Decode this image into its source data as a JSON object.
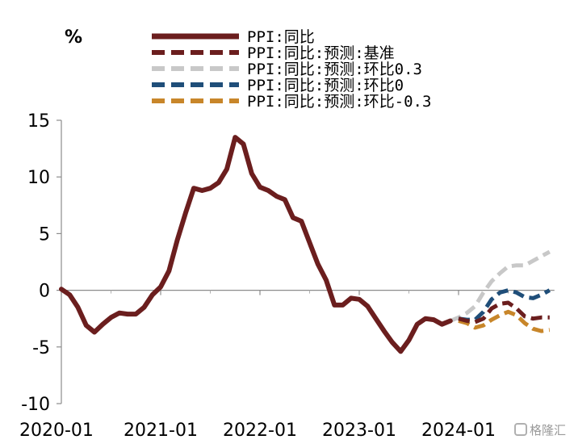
{
  "chart_data": {
    "type": "line",
    "unit_label": "%",
    "ylim": [
      -10,
      15
    ],
    "yticks": [
      "15",
      "10",
      "5",
      "0",
      "-5",
      "-10"
    ],
    "ytick_values": [
      15,
      10,
      5,
      0,
      -5,
      -10
    ],
    "xlim": [
      "2020-01",
      "2024-12"
    ],
    "xticks": [
      "2020-01",
      "2021-01",
      "2022-01",
      "2023-01",
      "2024-01"
    ],
    "xtick_indices": [
      0,
      12,
      24,
      36,
      48
    ],
    "grid": false,
    "legend_position": "top",
    "series": [
      {
        "name": "PPI:同比",
        "color": "#6b1e1e",
        "style": "solid",
        "start": "2020-01",
        "values": [
          0.1,
          -0.4,
          -1.5,
          -3.1,
          -3.7,
          -3.0,
          -2.4,
          -2.0,
          -2.1,
          -2.1,
          -1.5,
          -0.4,
          0.3,
          1.7,
          4.4,
          6.8,
          9.0,
          8.8,
          9.0,
          9.5,
          10.7,
          13.5,
          12.9,
          10.3,
          9.1,
          8.8,
          8.3,
          8.0,
          6.4,
          6.1,
          4.2,
          2.3,
          0.9,
          -1.3,
          -1.3,
          -0.7,
          -0.8,
          -1.4,
          -2.5,
          -3.6,
          -4.6,
          -5.4,
          -4.4,
          -3.0,
          -2.5,
          -2.6,
          -3.0,
          -2.7
        ]
      },
      {
        "name": "PPI:同比:预测:基准",
        "color": "#6b1e1e",
        "style": "dashed",
        "start": "2024-01",
        "values": [
          -2.5,
          -2.7,
          -2.8,
          -2.5,
          -1.6,
          -1.2,
          -1.1,
          -1.6,
          -2.3,
          -2.5,
          -2.4,
          -2.4
        ]
      },
      {
        "name": "PPI:同比:预测:环比0.3",
        "color": "#c8c8c8",
        "style": "dashed",
        "start": "2023-12",
        "values": [
          -2.7,
          -2.4,
          -2.0,
          -1.4,
          -0.2,
          0.8,
          1.5,
          2.1,
          2.2,
          2.2,
          2.6,
          3.0,
          3.4
        ]
      },
      {
        "name": "PPI:同比:预测:环比0",
        "color": "#1f4e79",
        "style": "dashed",
        "start": "2024-01",
        "values": [
          -2.5,
          -2.6,
          -2.6,
          -1.9,
          -0.8,
          -0.2,
          0.0,
          -0.2,
          -0.6,
          -0.7,
          -0.4,
          0.0
        ]
      },
      {
        "name": "PPI:同比:预测:环比-0.3",
        "color": "#c8862a",
        "style": "dashed",
        "start": "2024-01",
        "values": [
          -2.7,
          -2.9,
          -3.3,
          -3.1,
          -2.6,
          -2.2,
          -1.9,
          -2.2,
          -2.9,
          -3.4,
          -3.6,
          -3.5
        ]
      }
    ]
  },
  "watermark": "格隆汇"
}
